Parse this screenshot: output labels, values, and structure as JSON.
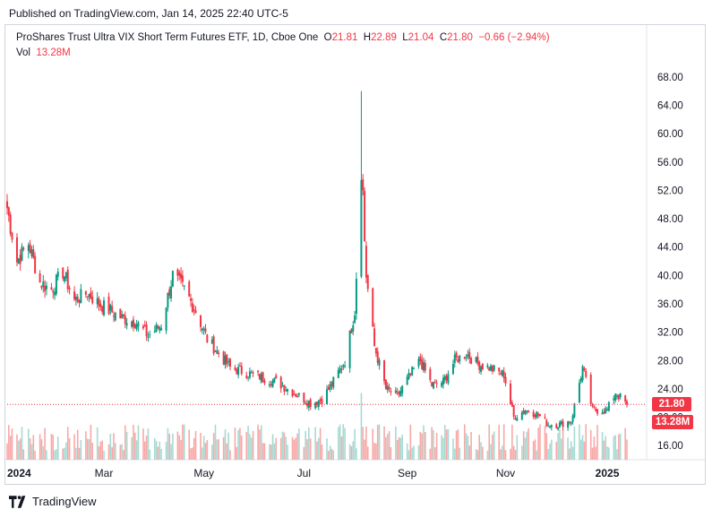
{
  "header": {
    "published": "Published on TradingView.com, Jan 14, 2025 22:40 UTC-5"
  },
  "legend": {
    "symbol": "ProShares Trust Ultra VIX Short Term Futures ETF, 1D, Cboe One",
    "o_label": "O",
    "o_value": "21.81",
    "h_label": "H",
    "h_value": "22.89",
    "l_label": "L",
    "l_value": "21.04",
    "c_label": "C",
    "c_value": "21.80",
    "change": "−0.66 (−2.94%)",
    "vol_label": "Vol",
    "vol_value": "13.28M"
  },
  "price_tags": {
    "last_price": "21.80",
    "last_volume": "13.28M"
  },
  "footer": {
    "brand": "TradingView"
  },
  "colors": {
    "up": "#089981",
    "down": "#f23645",
    "up_vol": "#a6dad3",
    "down_vol": "#f7a9a7"
  },
  "chart_data": {
    "type": "candlestick",
    "y_ticks": [
      "68.00",
      "64.00",
      "60.00",
      "56.00",
      "52.00",
      "48.00",
      "44.00",
      "40.00",
      "36.00",
      "32.00",
      "28.00",
      "24.00",
      "20.00",
      "16.00"
    ],
    "x_ticks": [
      "2024",
      "Mar",
      "May",
      "Jul",
      "Sep",
      "Nov",
      "2025"
    ],
    "ylim": [
      14,
      70
    ],
    "grid": false,
    "series": [
      {
        "name": "Close",
        "anchors": [
          [
            "2024-01-02",
            49.5
          ],
          [
            "2024-01-08",
            42.0
          ],
          [
            "2024-01-15",
            44.5
          ],
          [
            "2024-01-22",
            39.0
          ],
          [
            "2024-01-29",
            38.0
          ],
          [
            "2024-02-05",
            40.5
          ],
          [
            "2024-02-12",
            36.5
          ],
          [
            "2024-02-20",
            37.5
          ],
          [
            "2024-02-27",
            36.0
          ],
          [
            "2024-03-05",
            35.0
          ],
          [
            "2024-03-12",
            34.0
          ],
          [
            "2024-03-20",
            33.5
          ],
          [
            "2024-03-28",
            31.5
          ],
          [
            "2024-04-05",
            33.0
          ],
          [
            "2024-04-12",
            40.0
          ],
          [
            "2024-04-19",
            38.0
          ],
          [
            "2024-04-26",
            35.0
          ],
          [
            "2024-05-03",
            31.0
          ],
          [
            "2024-05-10",
            29.0
          ],
          [
            "2024-05-17",
            27.0
          ],
          [
            "2024-05-24",
            26.5
          ],
          [
            "2024-05-31",
            26.0
          ],
          [
            "2024-06-07",
            25.5
          ],
          [
            "2024-06-14",
            25.0
          ],
          [
            "2024-06-21",
            24.0
          ],
          [
            "2024-06-28",
            23.0
          ],
          [
            "2024-07-05",
            22.0
          ],
          [
            "2024-07-12",
            22.5
          ],
          [
            "2024-07-19",
            25.0
          ],
          [
            "2024-07-26",
            28.0
          ],
          [
            "2024-08-01",
            35.0
          ],
          [
            "2024-08-05",
            55.0
          ],
          [
            "2024-08-08",
            40.0
          ],
          [
            "2024-08-13",
            30.0
          ],
          [
            "2024-08-20",
            24.0
          ],
          [
            "2024-08-27",
            23.0
          ],
          [
            "2024-09-04",
            26.0
          ],
          [
            "2024-09-10",
            28.0
          ],
          [
            "2024-09-17",
            24.5
          ],
          [
            "2024-09-24",
            25.0
          ],
          [
            "2024-10-01",
            28.0
          ],
          [
            "2024-10-08",
            29.0
          ],
          [
            "2024-10-15",
            27.5
          ],
          [
            "2024-10-22",
            27.0
          ],
          [
            "2024-10-31",
            26.0
          ],
          [
            "2024-11-06",
            20.0
          ],
          [
            "2024-11-13",
            21.0
          ],
          [
            "2024-11-20",
            20.5
          ],
          [
            "2024-11-27",
            19.0
          ],
          [
            "2024-12-04",
            19.0
          ],
          [
            "2024-12-11",
            19.5
          ],
          [
            "2024-12-18",
            27.0
          ],
          [
            "2024-12-24",
            21.0
          ],
          [
            "2025-01-02",
            21.0
          ],
          [
            "2025-01-07",
            23.5
          ],
          [
            "2025-01-14",
            21.8
          ]
        ]
      }
    ],
    "last_price": 21.8,
    "volume_series": {
      "name": "Vol",
      "last": "13.28M"
    }
  }
}
